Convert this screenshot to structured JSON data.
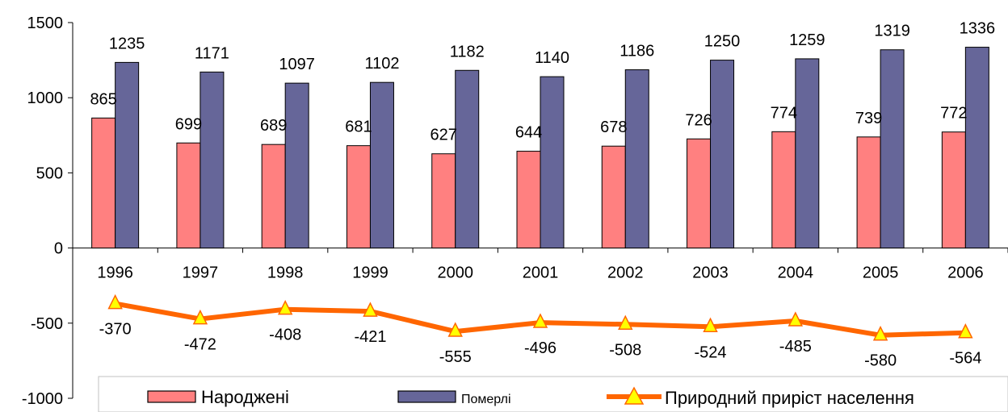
{
  "chart_data": {
    "type": "bar",
    "categories": [
      "1996",
      "1997",
      "1998",
      "1999",
      "2000",
      "2001",
      "2002",
      "2003",
      "2004",
      "2005",
      "2006"
    ],
    "series": [
      {
        "name": "Народжені",
        "kind": "bar",
        "color": "#ff8080",
        "values": [
          865,
          699,
          689,
          681,
          627,
          644,
          678,
          726,
          774,
          739,
          772
        ]
      },
      {
        "name": "Померлі",
        "kind": "bar",
        "color": "#666699",
        "values": [
          1235,
          1171,
          1097,
          1102,
          1182,
          1140,
          1186,
          1250,
          1259,
          1319,
          1336
        ]
      },
      {
        "name": "Природний приріст населення",
        "kind": "line",
        "color": "#ff6600",
        "marker": "triangle",
        "marker_color": "#ffff00",
        "values": [
          -370,
          -472,
          -408,
          -421,
          -555,
          -496,
          -508,
          -524,
          -485,
          -580,
          -564
        ]
      }
    ],
    "ylim": [
      -1000,
      1500
    ],
    "yticks": [
      -1000,
      -500,
      0,
      500,
      1000,
      1500
    ],
    "grid": false,
    "legend_position": "bottom",
    "title": "",
    "xlabel": "",
    "ylabel": ""
  }
}
